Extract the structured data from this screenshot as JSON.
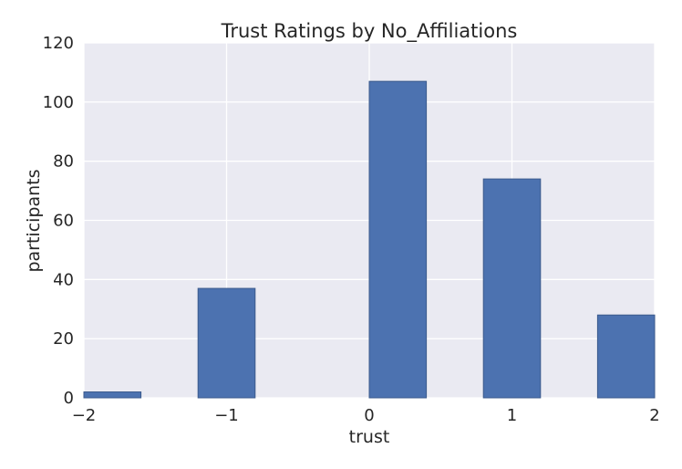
{
  "chart_data": {
    "type": "bar",
    "title": "Trust Ratings by No_Affiliations",
    "xlabel": "trust",
    "ylabel": "participants",
    "xlim": [
      -2,
      2
    ],
    "ylim": [
      0,
      120
    ],
    "xticks": [
      -2,
      -1,
      0,
      1,
      2
    ],
    "yticks": [
      0,
      20,
      40,
      60,
      80,
      100,
      120
    ],
    "xtick_labels": [
      "−2",
      "−1",
      "0",
      "1",
      "2"
    ],
    "ytick_labels": [
      "0",
      "20",
      "40",
      "60",
      "80",
      "100",
      "120"
    ],
    "bins": [
      {
        "x_start": -2.0,
        "x_end": -1.6,
        "value": 2
      },
      {
        "x_start": -1.2,
        "x_end": -0.8,
        "value": 37
      },
      {
        "x_start": -0.4,
        "x_end": 0.0,
        "value": 0
      },
      {
        "x_start": 0.0,
        "x_end": 0.4,
        "value": 107
      },
      {
        "x_start": 0.8,
        "x_end": 1.2,
        "value": 74
      },
      {
        "x_start": 1.6,
        "x_end": 2.0,
        "value": 28
      }
    ],
    "grid": true,
    "colors": {
      "bar": "#4c72b0",
      "bar_edge": "#3b5a8c",
      "plot_background": "#eaeaf2",
      "grid": "#ffffff",
      "text": "#262626"
    }
  }
}
